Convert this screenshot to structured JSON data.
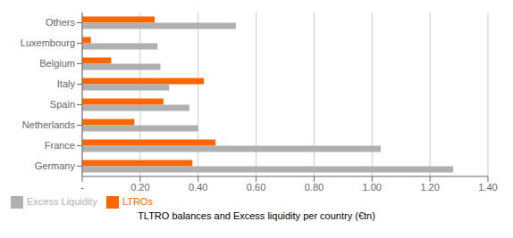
{
  "chart_data": {
    "type": "bar",
    "orientation": "horizontal",
    "title": "TLTRO balances and Excess liquidity per country (€tn)",
    "categories": [
      "Germany",
      "France",
      "Netherlands",
      "Spain",
      "Italy",
      "Belgium",
      "Luxembourg",
      "Others"
    ],
    "series": [
      {
        "name": "LTROs",
        "color": "#FF6600",
        "values": [
          0.38,
          0.46,
          0.18,
          0.28,
          0.42,
          0.1,
          0.03,
          0.25
        ]
      },
      {
        "name": "Excess Liquidity",
        "color": "#B0B0B0",
        "values": [
          1.28,
          1.03,
          0.4,
          0.37,
          0.3,
          0.27,
          0.26,
          0.53
        ]
      }
    ],
    "xlim": [
      0,
      1.4
    ],
    "xticks": [
      {
        "value": 0,
        "label": "-"
      },
      {
        "value": 0.2,
        "label": "0.20"
      },
      {
        "value": 0.4,
        "label": "0.40"
      },
      {
        "value": 0.6,
        "label": "0.60"
      },
      {
        "value": 0.8,
        "label": "0.80"
      },
      {
        "value": 1.0,
        "label": "1.00"
      },
      {
        "value": 1.2,
        "label": "1.20"
      },
      {
        "value": 1.4,
        "label": "1.40"
      }
    ],
    "grid": true,
    "legend": "lower left"
  }
}
